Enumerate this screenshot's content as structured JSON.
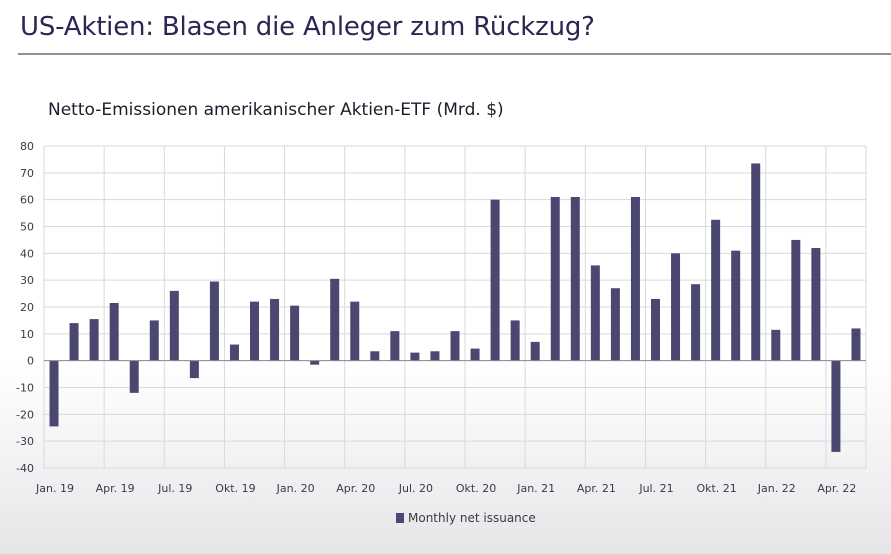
{
  "header": {
    "title": "US-Aktien: Blasen die Anleger zum Rückzug?"
  },
  "chart_data": {
    "type": "bar",
    "title": "Netto-Emissionen amerikanischer Aktien-ETF (Mrd. $)",
    "xlabel": "",
    "ylabel": "",
    "ylim": [
      -40,
      80
    ],
    "yticks": [
      -40,
      -30,
      -20,
      -10,
      0,
      10,
      20,
      30,
      40,
      50,
      60,
      70,
      80
    ],
    "grid": true,
    "legend_position": "bottom-center",
    "categories": [
      "Jan. 19",
      "Feb. 19",
      "Mar. 19",
      "Apr. 19",
      "May 19",
      "Jun. 19",
      "Jul. 19",
      "Aug. 19",
      "Sep. 19",
      "Okt. 19",
      "Nov. 19",
      "Dec. 19",
      "Jan. 20",
      "Feb. 20",
      "Mar. 20",
      "Apr. 20",
      "May 20",
      "Jun. 20",
      "Jul. 20",
      "Aug. 20",
      "Sep. 20",
      "Okt. 20",
      "Nov. 20",
      "Dec. 20",
      "Jan. 21",
      "Feb. 21",
      "Mar. 21",
      "Apr. 21",
      "May 21",
      "Jun. 21",
      "Jul. 21",
      "Aug. 21",
      "Sep. 21",
      "Okt. 21",
      "Nov. 21",
      "Dec. 21",
      "Jan. 22",
      "Feb. 22",
      "Mar. 22",
      "Apr. 22",
      "May 22"
    ],
    "x_tick_labels": [
      {
        "index": 0,
        "label": "Jan. 19"
      },
      {
        "index": 3,
        "label": "Apr. 19"
      },
      {
        "index": 6,
        "label": "Jul. 19"
      },
      {
        "index": 9,
        "label": "Okt. 19"
      },
      {
        "index": 12,
        "label": "Jan. 20"
      },
      {
        "index": 15,
        "label": "Apr. 20"
      },
      {
        "index": 18,
        "label": "Jul. 20"
      },
      {
        "index": 21,
        "label": "Okt. 20"
      },
      {
        "index": 24,
        "label": "Jan. 21"
      },
      {
        "index": 27,
        "label": "Apr. 21"
      },
      {
        "index": 30,
        "label": "Jul. 21"
      },
      {
        "index": 33,
        "label": "Okt. 21"
      },
      {
        "index": 36,
        "label": "Jan. 22"
      },
      {
        "index": 39,
        "label": "Apr. 22"
      }
    ],
    "series": [
      {
        "name": "Monthly net issuance",
        "color": "#4a4770",
        "values": [
          -24.5,
          14,
          15.5,
          21.5,
          -12,
          15,
          26,
          -6.5,
          29.5,
          6,
          22,
          23,
          20.5,
          -1.5,
          30.5,
          22,
          3.5,
          11,
          3,
          3.5,
          11,
          4.5,
          60,
          15,
          7,
          61,
          61,
          35.5,
          27,
          61,
          23,
          40,
          28.5,
          52.5,
          41,
          73.5,
          11.5,
          45,
          42,
          -34,
          12
        ]
      }
    ]
  }
}
